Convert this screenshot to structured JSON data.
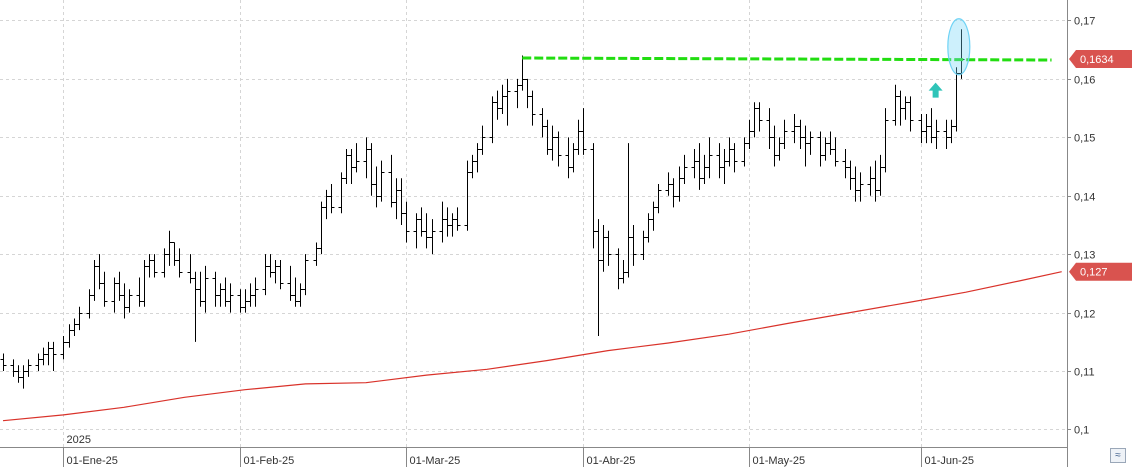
{
  "chart_data": {
    "type": "ohlc",
    "ylim": [
      0.097,
      0.1735
    ],
    "y_ticks": [
      {
        "value": 0.17,
        "label": "0,17"
      },
      {
        "value": 0.16,
        "label": "0,16"
      },
      {
        "value": 0.15,
        "label": "0,15"
      },
      {
        "value": 0.14,
        "label": "0,14"
      },
      {
        "value": 0.13,
        "label": "0,13"
      },
      {
        "value": 0.12,
        "label": "0,12"
      },
      {
        "value": 0.11,
        "label": "0,11"
      },
      {
        "value": 0.1,
        "label": "0,1"
      }
    ],
    "x_range": [
      0,
      208
    ],
    "x_ticks": [
      {
        "index": 12,
        "label": "01-Ene-25"
      },
      {
        "index": 47,
        "label": "01-Feb-25"
      },
      {
        "index": 80,
        "label": "01-Mar-25"
      },
      {
        "index": 115,
        "label": "01-Abr-25"
      },
      {
        "index": 148,
        "label": "01-May-25"
      },
      {
        "index": 182,
        "label": "01-Jun-25"
      }
    ],
    "year_marker": {
      "index": 12,
      "label": "2025"
    },
    "ohlc": [
      [
        0,
        0.112,
        0.113,
        0.11,
        0.111
      ],
      [
        2,
        0.111,
        0.112,
        0.109,
        0.11
      ],
      [
        3,
        0.11,
        0.111,
        0.108,
        0.109
      ],
      [
        4,
        0.109,
        0.111,
        0.107,
        0.11
      ],
      [
        5,
        0.11,
        0.112,
        0.109,
        0.111
      ],
      [
        7,
        0.111,
        0.113,
        0.11,
        0.112
      ],
      [
        8,
        0.112,
        0.114,
        0.111,
        0.113
      ],
      [
        9,
        0.113,
        0.115,
        0.111,
        0.114
      ],
      [
        10,
        0.114,
        0.115,
        0.11,
        0.113
      ],
      [
        12,
        0.113,
        0.116,
        0.112,
        0.115
      ],
      [
        13,
        0.115,
        0.118,
        0.114,
        0.117
      ],
      [
        14,
        0.117,
        0.119,
        0.116,
        0.118
      ],
      [
        15,
        0.118,
        0.121,
        0.117,
        0.12
      ],
      [
        17,
        0.12,
        0.124,
        0.119,
        0.123
      ],
      [
        18,
        0.123,
        0.129,
        0.122,
        0.128
      ],
      [
        19,
        0.128,
        0.13,
        0.124,
        0.125
      ],
      [
        20,
        0.125,
        0.127,
        0.121,
        0.122
      ],
      [
        22,
        0.122,
        0.126,
        0.12,
        0.125
      ],
      [
        23,
        0.125,
        0.127,
        0.122,
        0.123
      ],
      [
        24,
        0.123,
        0.125,
        0.119,
        0.121
      ],
      [
        25,
        0.121,
        0.124,
        0.12,
        0.123
      ],
      [
        27,
        0.123,
        0.126,
        0.121,
        0.122
      ],
      [
        28,
        0.122,
        0.129,
        0.121,
        0.128
      ],
      [
        29,
        0.128,
        0.13,
        0.126,
        0.129
      ],
      [
        30,
        0.129,
        0.13,
        0.126,
        0.127
      ],
      [
        32,
        0.127,
        0.131,
        0.126,
        0.13
      ],
      [
        33,
        0.13,
        0.134,
        0.128,
        0.132
      ],
      [
        34,
        0.132,
        0.132,
        0.128,
        0.129
      ],
      [
        35,
        0.129,
        0.131,
        0.126,
        0.127
      ],
      [
        37,
        0.127,
        0.13,
        0.125,
        0.126
      ],
      [
        38,
        0.126,
        0.127,
        0.115,
        0.124
      ],
      [
        39,
        0.124,
        0.127,
        0.121,
        0.122
      ],
      [
        40,
        0.122,
        0.128,
        0.12,
        0.126
      ],
      [
        42,
        0.126,
        0.127,
        0.121,
        0.123
      ],
      [
        43,
        0.123,
        0.125,
        0.121,
        0.124
      ],
      [
        44,
        0.124,
        0.126,
        0.121,
        0.122
      ],
      [
        45,
        0.122,
        0.125,
        0.12,
        0.123
      ],
      [
        47,
        0.123,
        0.124,
        0.12,
        0.121
      ],
      [
        48,
        0.121,
        0.124,
        0.12,
        0.122
      ],
      [
        49,
        0.122,
        0.125,
        0.121,
        0.123
      ],
      [
        50,
        0.123,
        0.126,
        0.121,
        0.124
      ],
      [
        52,
        0.124,
        0.13,
        0.123,
        0.128
      ],
      [
        53,
        0.128,
        0.13,
        0.126,
        0.127
      ],
      [
        54,
        0.127,
        0.129,
        0.125,
        0.128
      ],
      [
        55,
        0.128,
        0.129,
        0.124,
        0.125
      ],
      [
        57,
        0.125,
        0.128,
        0.122,
        0.123
      ],
      [
        58,
        0.123,
        0.126,
        0.121,
        0.122
      ],
      [
        59,
        0.122,
        0.125,
        0.121,
        0.124
      ],
      [
        60,
        0.124,
        0.13,
        0.123,
        0.129
      ],
      [
        62,
        0.129,
        0.132,
        0.128,
        0.131
      ],
      [
        63,
        0.131,
        0.139,
        0.13,
        0.138
      ],
      [
        64,
        0.138,
        0.141,
        0.136,
        0.14
      ],
      [
        65,
        0.14,
        0.142,
        0.137,
        0.138
      ],
      [
        67,
        0.138,
        0.144,
        0.137,
        0.143
      ],
      [
        68,
        0.143,
        0.148,
        0.142,
        0.147
      ],
      [
        69,
        0.147,
        0.148,
        0.142,
        0.145
      ],
      [
        70,
        0.145,
        0.149,
        0.144,
        0.146
      ],
      [
        72,
        0.146,
        0.15,
        0.143,
        0.148
      ],
      [
        73,
        0.148,
        0.149,
        0.14,
        0.142
      ],
      [
        74,
        0.142,
        0.145,
        0.138,
        0.14
      ],
      [
        75,
        0.14,
        0.146,
        0.139,
        0.144
      ],
      [
        77,
        0.144,
        0.147,
        0.138,
        0.139
      ],
      [
        78,
        0.139,
        0.143,
        0.136,
        0.141
      ],
      [
        79,
        0.141,
        0.143,
        0.135,
        0.137
      ],
      [
        80,
        0.137,
        0.139,
        0.132,
        0.134
      ],
      [
        82,
        0.134,
        0.137,
        0.131,
        0.136
      ],
      [
        83,
        0.136,
        0.138,
        0.133,
        0.134
      ],
      [
        84,
        0.134,
        0.137,
        0.131,
        0.133
      ],
      [
        85,
        0.133,
        0.136,
        0.13,
        0.134
      ],
      [
        87,
        0.134,
        0.139,
        0.132,
        0.136
      ],
      [
        88,
        0.136,
        0.138,
        0.133,
        0.135
      ],
      [
        89,
        0.135,
        0.137,
        0.133,
        0.136
      ],
      [
        90,
        0.136,
        0.138,
        0.134,
        0.135
      ],
      [
        92,
        0.135,
        0.146,
        0.134,
        0.144
      ],
      [
        93,
        0.144,
        0.147,
        0.143,
        0.146
      ],
      [
        94,
        0.146,
        0.149,
        0.144,
        0.148
      ],
      [
        95,
        0.148,
        0.152,
        0.147,
        0.15
      ],
      [
        97,
        0.15,
        0.157,
        0.149,
        0.156
      ],
      [
        98,
        0.156,
        0.158,
        0.153,
        0.155
      ],
      [
        99,
        0.155,
        0.159,
        0.154,
        0.157
      ],
      [
        100,
        0.157,
        0.16,
        0.152,
        0.158
      ],
      [
        102,
        0.158,
        0.16,
        0.155,
        0.159
      ],
      [
        103,
        0.159,
        0.164,
        0.158,
        0.16
      ],
      [
        104,
        0.16,
        0.16,
        0.155,
        0.157
      ],
      [
        105,
        0.157,
        0.158,
        0.152,
        0.154
      ],
      [
        107,
        0.154,
        0.155,
        0.15,
        0.152
      ],
      [
        108,
        0.152,
        0.153,
        0.147,
        0.148
      ],
      [
        109,
        0.148,
        0.152,
        0.146,
        0.15
      ],
      [
        110,
        0.15,
        0.151,
        0.145,
        0.147
      ],
      [
        112,
        0.147,
        0.15,
        0.143,
        0.145
      ],
      [
        113,
        0.145,
        0.149,
        0.144,
        0.148
      ],
      [
        114,
        0.148,
        0.153,
        0.147,
        0.151
      ],
      [
        115,
        0.151,
        0.155,
        0.147,
        0.148
      ],
      [
        117,
        0.148,
        0.149,
        0.131,
        0.134
      ],
      [
        118,
        0.134,
        0.136,
        0.116,
        0.129
      ],
      [
        119,
        0.129,
        0.135,
        0.127,
        0.133
      ],
      [
        120,
        0.133,
        0.134,
        0.128,
        0.13
      ],
      [
        122,
        0.13,
        0.131,
        0.124,
        0.126
      ],
      [
        123,
        0.126,
        0.129,
        0.125,
        0.127
      ],
      [
        124,
        0.127,
        0.149,
        0.126,
        0.133
      ],
      [
        125,
        0.133,
        0.135,
        0.128,
        0.13
      ],
      [
        127,
        0.13,
        0.134,
        0.129,
        0.133
      ],
      [
        128,
        0.133,
        0.137,
        0.132,
        0.136
      ],
      [
        129,
        0.136,
        0.139,
        0.134,
        0.138
      ],
      [
        130,
        0.138,
        0.142,
        0.137,
        0.141
      ],
      [
        132,
        0.141,
        0.144,
        0.14,
        0.142
      ],
      [
        133,
        0.142,
        0.143,
        0.138,
        0.14
      ],
      [
        134,
        0.14,
        0.145,
        0.139,
        0.143
      ],
      [
        135,
        0.143,
        0.147,
        0.142,
        0.145
      ],
      [
        137,
        0.145,
        0.148,
        0.143,
        0.146
      ],
      [
        138,
        0.146,
        0.149,
        0.141,
        0.143
      ],
      [
        139,
        0.143,
        0.147,
        0.142,
        0.145
      ],
      [
        140,
        0.145,
        0.15,
        0.143,
        0.147
      ],
      [
        142,
        0.147,
        0.149,
        0.143,
        0.145
      ],
      [
        143,
        0.145,
        0.148,
        0.142,
        0.146
      ],
      [
        144,
        0.146,
        0.15,
        0.145,
        0.148
      ],
      [
        145,
        0.148,
        0.149,
        0.144,
        0.146
      ],
      [
        147,
        0.146,
        0.15,
        0.145,
        0.149
      ],
      [
        148,
        0.149,
        0.153,
        0.148,
        0.151
      ],
      [
        149,
        0.151,
        0.156,
        0.15,
        0.155
      ],
      [
        150,
        0.155,
        0.156,
        0.151,
        0.153
      ],
      [
        152,
        0.153,
        0.155,
        0.148,
        0.15
      ],
      [
        153,
        0.15,
        0.152,
        0.145,
        0.147
      ],
      [
        154,
        0.147,
        0.15,
        0.146,
        0.149
      ],
      [
        155,
        0.149,
        0.153,
        0.148,
        0.151
      ],
      [
        157,
        0.151,
        0.154,
        0.149,
        0.152
      ],
      [
        158,
        0.152,
        0.153,
        0.148,
        0.15
      ],
      [
        159,
        0.15,
        0.152,
        0.145,
        0.149
      ],
      [
        160,
        0.149,
        0.151,
        0.147,
        0.15
      ],
      [
        162,
        0.15,
        0.151,
        0.145,
        0.147
      ],
      [
        163,
        0.147,
        0.15,
        0.146,
        0.149
      ],
      [
        164,
        0.149,
        0.151,
        0.147,
        0.148
      ],
      [
        165,
        0.148,
        0.15,
        0.145,
        0.146
      ],
      [
        167,
        0.146,
        0.148,
        0.143,
        0.145
      ],
      [
        168,
        0.145,
        0.146,
        0.141,
        0.143
      ],
      [
        169,
        0.143,
        0.145,
        0.139,
        0.141
      ],
      [
        170,
        0.141,
        0.144,
        0.139,
        0.142
      ],
      [
        172,
        0.142,
        0.145,
        0.14,
        0.143
      ],
      [
        173,
        0.143,
        0.146,
        0.139,
        0.141
      ],
      [
        174,
        0.141,
        0.147,
        0.14,
        0.145
      ],
      [
        175,
        0.145,
        0.155,
        0.144,
        0.153
      ],
      [
        177,
        0.153,
        0.159,
        0.152,
        0.157
      ],
      [
        178,
        0.157,
        0.158,
        0.152,
        0.155
      ],
      [
        179,
        0.155,
        0.157,
        0.153,
        0.156
      ],
      [
        180,
        0.156,
        0.157,
        0.151,
        0.153
      ],
      [
        182,
        0.153,
        0.154,
        0.149,
        0.151
      ],
      [
        183,
        0.151,
        0.154,
        0.149,
        0.152
      ],
      [
        184,
        0.152,
        0.155,
        0.149,
        0.15
      ],
      [
        185,
        0.15,
        0.153,
        0.148,
        0.151
      ],
      [
        187,
        0.151,
        0.153,
        0.148,
        0.15
      ],
      [
        188,
        0.15,
        0.153,
        0.149,
        0.152
      ],
      [
        189,
        0.152,
        0.162,
        0.151,
        0.161
      ],
      [
        190,
        0.161,
        0.1685,
        0.16,
        0.1634
      ]
    ],
    "moving_average": [
      [
        0,
        0.1015
      ],
      [
        12,
        0.1025
      ],
      [
        24,
        0.1038
      ],
      [
        36,
        0.1055
      ],
      [
        48,
        0.1068
      ],
      [
        60,
        0.1078
      ],
      [
        72,
        0.108
      ],
      [
        84,
        0.1093
      ],
      [
        96,
        0.1103
      ],
      [
        108,
        0.1118
      ],
      [
        120,
        0.1135
      ],
      [
        132,
        0.1148
      ],
      [
        144,
        0.1163
      ],
      [
        156,
        0.1182
      ],
      [
        168,
        0.12
      ],
      [
        180,
        0.1218
      ],
      [
        191,
        0.1235
      ],
      [
        202,
        0.1255
      ],
      [
        210,
        0.127
      ]
    ],
    "resistance_line": {
      "x_start": 103,
      "x_end": 208,
      "value": 0.1634
    },
    "price_labels": [
      {
        "value": 0.1634,
        "label": "0,1634",
        "color": "#d9534f"
      },
      {
        "value": 0.127,
        "label": "0,127",
        "color": "#d9534f"
      }
    ],
    "annotations": [
      {
        "type": "up-arrow",
        "index": 185,
        "value": 0.158,
        "color": "#2fc4b8"
      },
      {
        "type": "highlight-ellipse",
        "index": 190,
        "value": 0.1655,
        "color": "#6fd3f5"
      }
    ],
    "colors": {
      "bars": "#000000",
      "moving_average": "#d9322a",
      "resistance_line": "#22dd11",
      "grid": "#d5d5d5",
      "axis": "#888888"
    }
  },
  "ui": {
    "scroll_button_label": "≈"
  }
}
